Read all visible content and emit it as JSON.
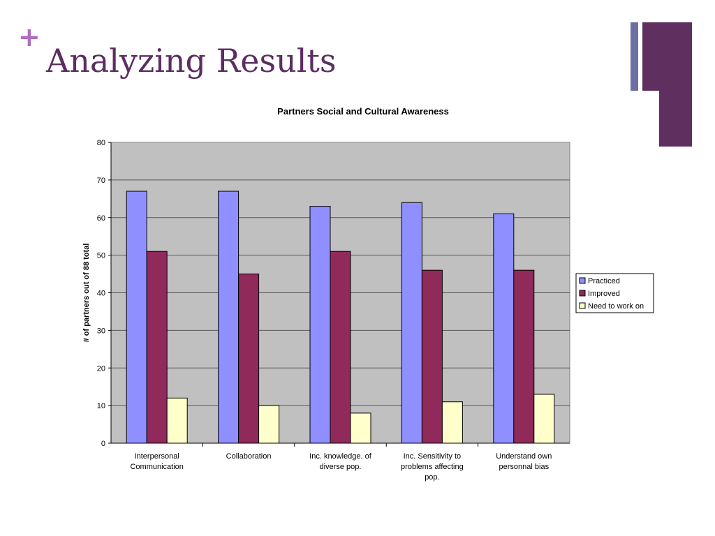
{
  "slide": {
    "plus_symbol": "+",
    "title": "Analyzing Results"
  },
  "colors": {
    "title": "#5c2d62",
    "plus": "#b26bc2",
    "plot_background": "#c0c0c0",
    "practiced": "#8f8fff",
    "improved": "#8f2a5b",
    "need_to_work_on": "#ffffcc"
  },
  "chart_data": {
    "type": "bar",
    "title": "Partners Social and Cultural Awareness",
    "xlabel": "",
    "ylabel": "# of partners out of 88 total",
    "ylim": [
      0,
      80
    ],
    "yticks": [
      0,
      10,
      20,
      30,
      40,
      50,
      60,
      70,
      80
    ],
    "grid": true,
    "legend_position": "right",
    "categories": [
      [
        "Interpersonal",
        "Communication"
      ],
      [
        "Collaboration"
      ],
      [
        "Inc. knowledge. of",
        "diverse pop."
      ],
      [
        "Inc. Sensitivity to",
        "problems affecting",
        "pop."
      ],
      [
        "Understand own",
        "personnal bias"
      ]
    ],
    "series": [
      {
        "name": "Practiced",
        "color": "#8f8fff",
        "values": [
          67,
          67,
          63,
          64,
          61
        ]
      },
      {
        "name": "Improved",
        "color": "#8f2a5b",
        "values": [
          51,
          45,
          51,
          46,
          46
        ]
      },
      {
        "name": "Need to work on",
        "color": "#ffffcc",
        "values": [
          12,
          10,
          8,
          11,
          13
        ]
      }
    ]
  }
}
